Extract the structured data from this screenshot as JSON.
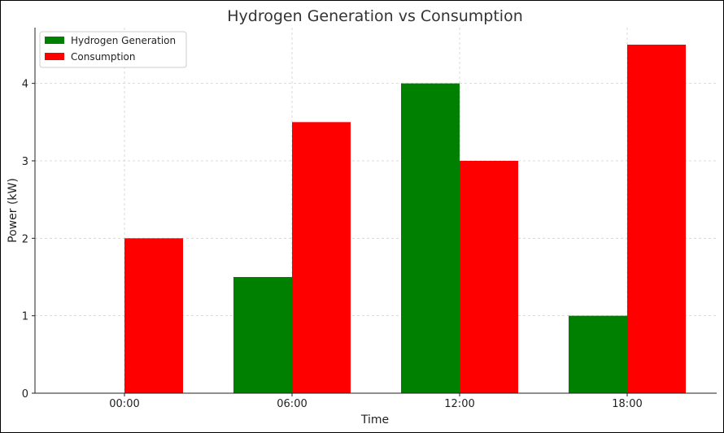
{
  "chart_data": {
    "type": "bar",
    "title": "Hydrogen Generation vs Consumption",
    "xlabel": "Time",
    "ylabel": "Power (kW)",
    "categories": [
      "00:00",
      "06:00",
      "12:00",
      "18:00"
    ],
    "series": [
      {
        "name": "Hydrogen Generation",
        "color": "#008000",
        "values": [
          0,
          1.5,
          4,
          1
        ]
      },
      {
        "name": "Consumption",
        "color": "#ff0000",
        "values": [
          2,
          3.5,
          3,
          4.5
        ]
      }
    ],
    "ylim": [
      0,
      4.72
    ],
    "yticks": [
      "0",
      "1",
      "2",
      "3",
      "4"
    ],
    "grid": true,
    "legend_position": "top-left"
  }
}
